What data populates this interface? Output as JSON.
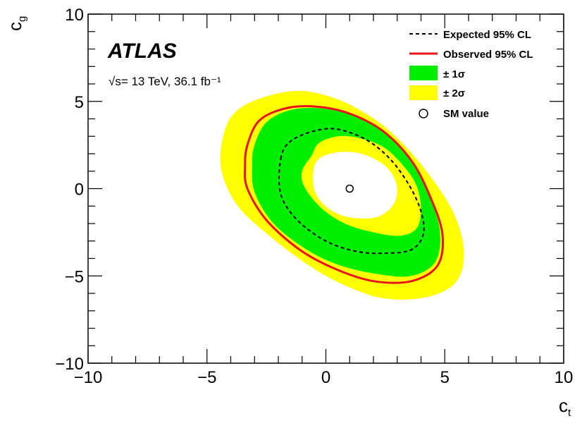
{
  "chart_data": {
    "type": "contour",
    "experiment": "ATLAS",
    "energy_label": "√s= 13 TeV, 36.1 fb⁻¹",
    "xlabel": "c",
    "xlabel_sub": "t",
    "ylabel": "c",
    "ylabel_sub": "g",
    "xlim": [
      -10,
      10
    ],
    "ylim": [
      -10,
      10
    ],
    "xticks": [
      -10,
      -5,
      0,
      5,
      10
    ],
    "yticks": [
      -10,
      -5,
      0,
      5,
      10
    ],
    "xtick_labels": [
      "−10",
      "−5",
      "0",
      "5",
      "10"
    ],
    "ytick_labels": [
      "−10",
      "−5",
      "0",
      "5",
      "10"
    ],
    "grid": false,
    "legend_position": "top-right",
    "legend": [
      {
        "label": "Expected 95% CL",
        "style": "dashed-line",
        "color": "#000000"
      },
      {
        "label": "Observed 95% CL",
        "style": "solid-line",
        "color": "#e8141c"
      },
      {
        "label": "± 1σ",
        "style": "filled-box",
        "color": "#00ee00"
      },
      {
        "label": "± 2σ",
        "style": "filled-box",
        "color": "#ffff00"
      },
      {
        "label": "SM value",
        "style": "open-circle",
        "color": "#000000"
      }
    ],
    "sm_point": {
      "x": 1,
      "y": 0
    },
    "contours": {
      "band_2sigma_outer": [
        [
          -4.3,
          3.1
        ],
        [
          -3.8,
          4.4
        ],
        [
          -2.7,
          5.2
        ],
        [
          -1.2,
          5.6
        ],
        [
          0.1,
          5.3
        ],
        [
          1.3,
          4.6
        ],
        [
          2.6,
          3.4
        ],
        [
          4.0,
          1.4
        ],
        [
          5.3,
          -1.2
        ],
        [
          5.8,
          -3.5
        ],
        [
          5.5,
          -5.3
        ],
        [
          4.3,
          -6.2
        ],
        [
          2.5,
          -6.3
        ],
        [
          0.9,
          -5.6
        ],
        [
          -0.6,
          -4.5
        ],
        [
          -2.2,
          -2.9
        ],
        [
          -3.7,
          -1.0
        ],
        [
          -4.4,
          1.1
        ]
      ],
      "band_1sigma_outer": [
        [
          -3.0,
          2.5
        ],
        [
          -2.5,
          3.8
        ],
        [
          -1.5,
          4.5
        ],
        [
          -0.2,
          4.6
        ],
        [
          1.2,
          4.2
        ],
        [
          2.5,
          3.2
        ],
        [
          3.6,
          1.5
        ],
        [
          4.4,
          -0.6
        ],
        [
          4.8,
          -2.5
        ],
        [
          4.6,
          -4.2
        ],
        [
          3.6,
          -5.0
        ],
        [
          2.2,
          -4.9
        ],
        [
          0.6,
          -4.4
        ],
        [
          -0.8,
          -3.5
        ],
        [
          -2.2,
          -2.0
        ],
        [
          -3.0,
          -0.2
        ],
        [
          -3.1,
          1.4
        ]
      ],
      "band_1sigma_inner": [
        [
          -0.6,
          1.9
        ],
        [
          -0.3,
          2.6
        ],
        [
          0.5,
          3.0
        ],
        [
          1.4,
          2.9
        ],
        [
          2.4,
          2.4
        ],
        [
          3.2,
          1.4
        ],
        [
          3.8,
          0.2
        ],
        [
          4.0,
          -1.2
        ],
        [
          3.8,
          -2.3
        ],
        [
          3.1,
          -2.7
        ],
        [
          2.0,
          -2.5
        ],
        [
          0.8,
          -2.0
        ],
        [
          -0.2,
          -1.1
        ],
        [
          -0.9,
          0.1
        ],
        [
          -1.0,
          1.0
        ]
      ],
      "band_2sigma_inner": [
        [
          -0.5,
          1.2
        ],
        [
          -0.2,
          1.8
        ],
        [
          0.6,
          2.1
        ],
        [
          1.5,
          2.0
        ],
        [
          2.3,
          1.5
        ],
        [
          2.8,
          0.8
        ],
        [
          3.0,
          -0.1
        ],
        [
          2.8,
          -1.0
        ],
        [
          2.2,
          -1.6
        ],
        [
          1.4,
          -1.7
        ],
        [
          0.6,
          -1.5
        ],
        [
          -0.1,
          -0.9
        ],
        [
          -0.5,
          0.0
        ]
      ],
      "expected_95CL": [
        [
          -1.9,
          1.7
        ],
        [
          -1.5,
          2.7
        ],
        [
          -0.5,
          3.3
        ],
        [
          0.5,
          3.4
        ],
        [
          1.7,
          2.8
        ],
        [
          2.7,
          1.7
        ],
        [
          3.5,
          0.2
        ],
        [
          4.0,
          -1.3
        ],
        [
          4.1,
          -2.6
        ],
        [
          3.6,
          -3.5
        ],
        [
          2.5,
          -3.7
        ],
        [
          1.3,
          -3.6
        ],
        [
          0.0,
          -3.0
        ],
        [
          -1.2,
          -1.8
        ],
        [
          -1.9,
          -0.3
        ]
      ],
      "observed_95CL": [
        [
          -3.3,
          2.5
        ],
        [
          -2.8,
          3.9
        ],
        [
          -1.7,
          4.6
        ],
        [
          -0.4,
          4.7
        ],
        [
          1.0,
          4.3
        ],
        [
          2.4,
          3.3
        ],
        [
          3.6,
          1.6
        ],
        [
          4.4,
          -0.5
        ],
        [
          4.9,
          -2.6
        ],
        [
          4.7,
          -4.4
        ],
        [
          3.6,
          -5.3
        ],
        [
          2.0,
          -5.3
        ],
        [
          0.4,
          -4.6
        ],
        [
          -1.1,
          -3.5
        ],
        [
          -2.5,
          -1.8
        ],
        [
          -3.3,
          0.0
        ],
        [
          -3.4,
          1.3
        ]
      ]
    }
  }
}
